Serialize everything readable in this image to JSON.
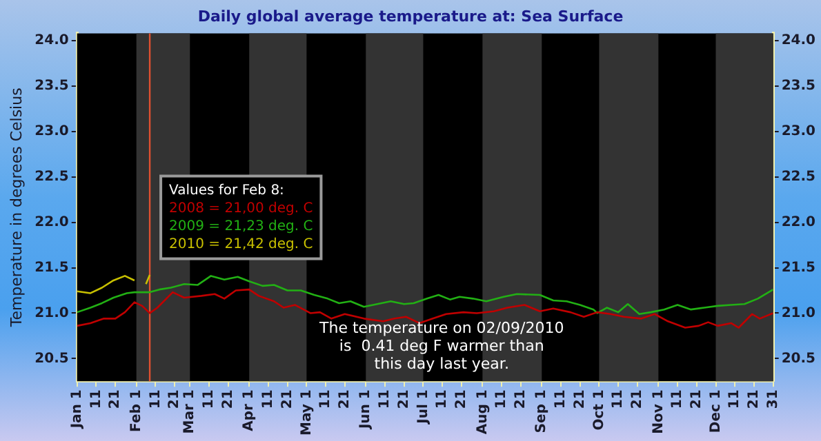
{
  "chart_data": {
    "type": "line",
    "title": "Daily global average temperature at: Sea Surface",
    "ylabel": "Temperature in degrees Celsius",
    "xlim": [
      "--01-01",
      "--12-31"
    ],
    "xticks": [
      {
        "value": "--01-01",
        "label": "Jan 1"
      },
      {
        "value": "--01-11",
        "label": "11"
      },
      {
        "value": "--01-21",
        "label": "21"
      },
      {
        "value": "--02-01",
        "label": "Feb 1"
      },
      {
        "value": "--02-11",
        "label": "11"
      },
      {
        "value": "--02-21",
        "label": "21"
      },
      {
        "value": "--03-01",
        "label": "Mar 1"
      },
      {
        "value": "--03-11",
        "label": "11"
      },
      {
        "value": "--03-21",
        "label": "21"
      },
      {
        "value": "--04-01",
        "label": "Apr 1"
      },
      {
        "value": "--04-11",
        "label": "11"
      },
      {
        "value": "--04-21",
        "label": "21"
      },
      {
        "value": "--05-01",
        "label": "May 1"
      },
      {
        "value": "--05-11",
        "label": "11"
      },
      {
        "value": "--05-21",
        "label": "21"
      },
      {
        "value": "--06-01",
        "label": "Jun 1"
      },
      {
        "value": "--06-11",
        "label": "11"
      },
      {
        "value": "--06-21",
        "label": "21"
      },
      {
        "value": "--07-01",
        "label": "Jul 1"
      },
      {
        "value": "--07-11",
        "label": "11"
      },
      {
        "value": "--07-21",
        "label": "21"
      },
      {
        "value": "--08-01",
        "label": "Aug 1"
      },
      {
        "value": "--08-11",
        "label": "11"
      },
      {
        "value": "--08-21",
        "label": "21"
      },
      {
        "value": "--09-01",
        "label": "Sep 1"
      },
      {
        "value": "--09-11",
        "label": "11"
      },
      {
        "value": "--09-21",
        "label": "21"
      },
      {
        "value": "--10-01",
        "label": "Oct 1"
      },
      {
        "value": "--10-11",
        "label": "11"
      },
      {
        "value": "--10-21",
        "label": "21"
      },
      {
        "value": "--11-01",
        "label": "Nov 1"
      },
      {
        "value": "--11-11",
        "label": "11"
      },
      {
        "value": "--11-21",
        "label": "21"
      },
      {
        "value": "--12-01",
        "label": "Dec 1"
      },
      {
        "value": "--12-11",
        "label": "11"
      },
      {
        "value": "--12-21",
        "label": "21"
      },
      {
        "value": "--12-31",
        "label": "31"
      }
    ],
    "ylim": [
      20.25,
      24.08
    ],
    "yticks": [
      {
        "value": 20.5,
        "label": "20.5"
      },
      {
        "value": 21,
        "label": "21.0"
      },
      {
        "value": 21.5,
        "label": "21.5"
      },
      {
        "value": 22,
        "label": "22.0"
      },
      {
        "value": 22.5,
        "label": "22.5"
      },
      {
        "value": 23,
        "label": "23.0"
      },
      {
        "value": 23.5,
        "label": "23.5"
      },
      {
        "value": 24,
        "label": "24.0"
      }
    ],
    "y2lim": [
      20.25,
      24.08
    ],
    "y2ticks": [
      {
        "value": 20.5,
        "label": "20.5"
      },
      {
        "value": 21,
        "label": "21.0"
      },
      {
        "value": 21.5,
        "label": "21.5"
      },
      {
        "value": 22,
        "label": "22.0"
      },
      {
        "value": 22.5,
        "label": "22.5"
      },
      {
        "value": 23,
        "label": "23.0"
      },
      {
        "value": 23.5,
        "label": "23.5"
      },
      {
        "value": 24,
        "label": "24.0"
      }
    ],
    "grid": false,
    "legend": false,
    "marker": "none",
    "line_style": "solid",
    "bands": [
      {
        "axis": "x",
        "from": "--02-01",
        "to": "--03-01",
        "color": "#333333"
      },
      {
        "axis": "x",
        "from": "--04-01",
        "to": "--05-01",
        "color": "#333333"
      },
      {
        "axis": "x",
        "from": "--06-01",
        "to": "--07-01",
        "color": "#333333"
      },
      {
        "axis": "x",
        "from": "--08-01",
        "to": "--09-01",
        "color": "#333333"
      },
      {
        "axis": "x",
        "from": "--10-01",
        "to": "--11-01",
        "color": "#333333"
      },
      {
        "axis": "x",
        "from": "--12-01",
        "to": "--12-31",
        "color": "#333333"
      }
    ],
    "ref_lines": [
      {
        "axis": "x",
        "value": "--02-08",
        "color": "#e05030"
      }
    ],
    "annotations": [
      "Values for Feb 8:",
      "2008 = 21,00 deg. C",
      "2009 = 21,23 deg. C",
      "2010 = 21,42 deg. C",
      "The temperature on 02/09/2010\nis  0.41 deg F warmer than\nthis day last year."
    ],
    "series": [
      {
        "color": "#c00000",
        "x": [
          "--01-01",
          "--01-08",
          "--01-15",
          "--01-21",
          "--01-26",
          "--01-31",
          "--02-04",
          "--02-08",
          "--02-12",
          "--02-20",
          "--02-26",
          "--03-07",
          "--03-14",
          "--03-19",
          "--03-25",
          "--04-01",
          "--04-06",
          "--04-14",
          "--04-19",
          "--04-25",
          "--05-03",
          "--05-08",
          "--05-14",
          "--05-21",
          "--05-31",
          "--06-10",
          "--06-16",
          "--06-22",
          "--06-29",
          "--07-06",
          "--07-13",
          "--07-22",
          "--07-29",
          "--08-07",
          "--08-14",
          "--08-23",
          "--08-31",
          "--09-07",
          "--09-16",
          "--09-23",
          "--09-30",
          "--10-07",
          "--10-14",
          "--10-23",
          "--10-30",
          "--11-06",
          "--11-15",
          "--11-22",
          "--11-27",
          "--12-02",
          "--12-09",
          "--12-13",
          "--12-20",
          "--12-24",
          "--12-31"
        ],
        "values": [
          20.86,
          20.89,
          20.94,
          20.94,
          21.01,
          21.12,
          21.08,
          21.0,
          21.06,
          21.23,
          21.17,
          21.19,
          21.21,
          21.16,
          21.25,
          21.26,
          21.19,
          21.13,
          21.06,
          21.09,
          21.0,
          21.01,
          20.94,
          20.99,
          20.94,
          20.91,
          20.94,
          20.96,
          20.89,
          20.94,
          20.99,
          21.01,
          21.0,
          21.02,
          21.06,
          21.09,
          21.02,
          21.05,
          21.01,
          20.96,
          21.01,
          20.99,
          20.96,
          20.94,
          20.99,
          20.91,
          20.84,
          20.86,
          20.9,
          20.86,
          20.89,
          20.84,
          20.99,
          20.94,
          21.0
        ]
      },
      {
        "color": "#22b014",
        "x": [
          "--01-01",
          "--01-08",
          "--01-14",
          "--01-20",
          "--01-27",
          "--01-31",
          "--02-08",
          "--02-13",
          "--02-19",
          "--02-26",
          "--03-05",
          "--03-12",
          "--03-19",
          "--03-26",
          "--04-01",
          "--04-08",
          "--04-14",
          "--04-21",
          "--04-28",
          "--05-05",
          "--05-12",
          "--05-18",
          "--05-24",
          "--05-31",
          "--06-07",
          "--06-14",
          "--06-21",
          "--06-26",
          "--07-03",
          "--07-09",
          "--07-15",
          "--07-20",
          "--07-27",
          "--08-03",
          "--08-12",
          "--08-19",
          "--08-31",
          "--09-07",
          "--09-14",
          "--09-21",
          "--09-28",
          "--09-30",
          "--10-05",
          "--10-11",
          "--10-16",
          "--10-22",
          "--10-28",
          "--11-04",
          "--11-11",
          "--11-18",
          "--11-25",
          "--12-02",
          "--12-09",
          "--12-16",
          "--12-23",
          "--12-31"
        ],
        "values": [
          21.01,
          21.06,
          21.11,
          21.17,
          21.22,
          21.23,
          21.23,
          21.26,
          21.28,
          21.32,
          21.31,
          21.41,
          21.37,
          21.4,
          21.35,
          21.3,
          21.31,
          21.25,
          21.25,
          21.2,
          21.16,
          21.11,
          21.13,
          21.07,
          21.1,
          21.13,
          21.1,
          21.11,
          21.16,
          21.2,
          21.15,
          21.18,
          21.16,
          21.13,
          21.18,
          21.21,
          21.2,
          21.14,
          21.13,
          21.09,
          21.04,
          21.0,
          21.06,
          21.01,
          21.1,
          20.99,
          21.01,
          21.04,
          21.09,
          21.04,
          21.06,
          21.08,
          21.09,
          21.1,
          21.16,
          21.26
        ]
      },
      {
        "color": "#c8c000",
        "x": [
          "--01-01",
          "--01-08",
          "--01-14",
          "--01-20",
          "--01-26",
          "--01-31",
          "--02-03",
          "--02-06",
          "--02-08"
        ],
        "values": [
          21.24,
          21.22,
          21.28,
          21.36,
          21.41,
          21.36,
          null,
          21.32,
          21.42
        ]
      }
    ]
  }
}
